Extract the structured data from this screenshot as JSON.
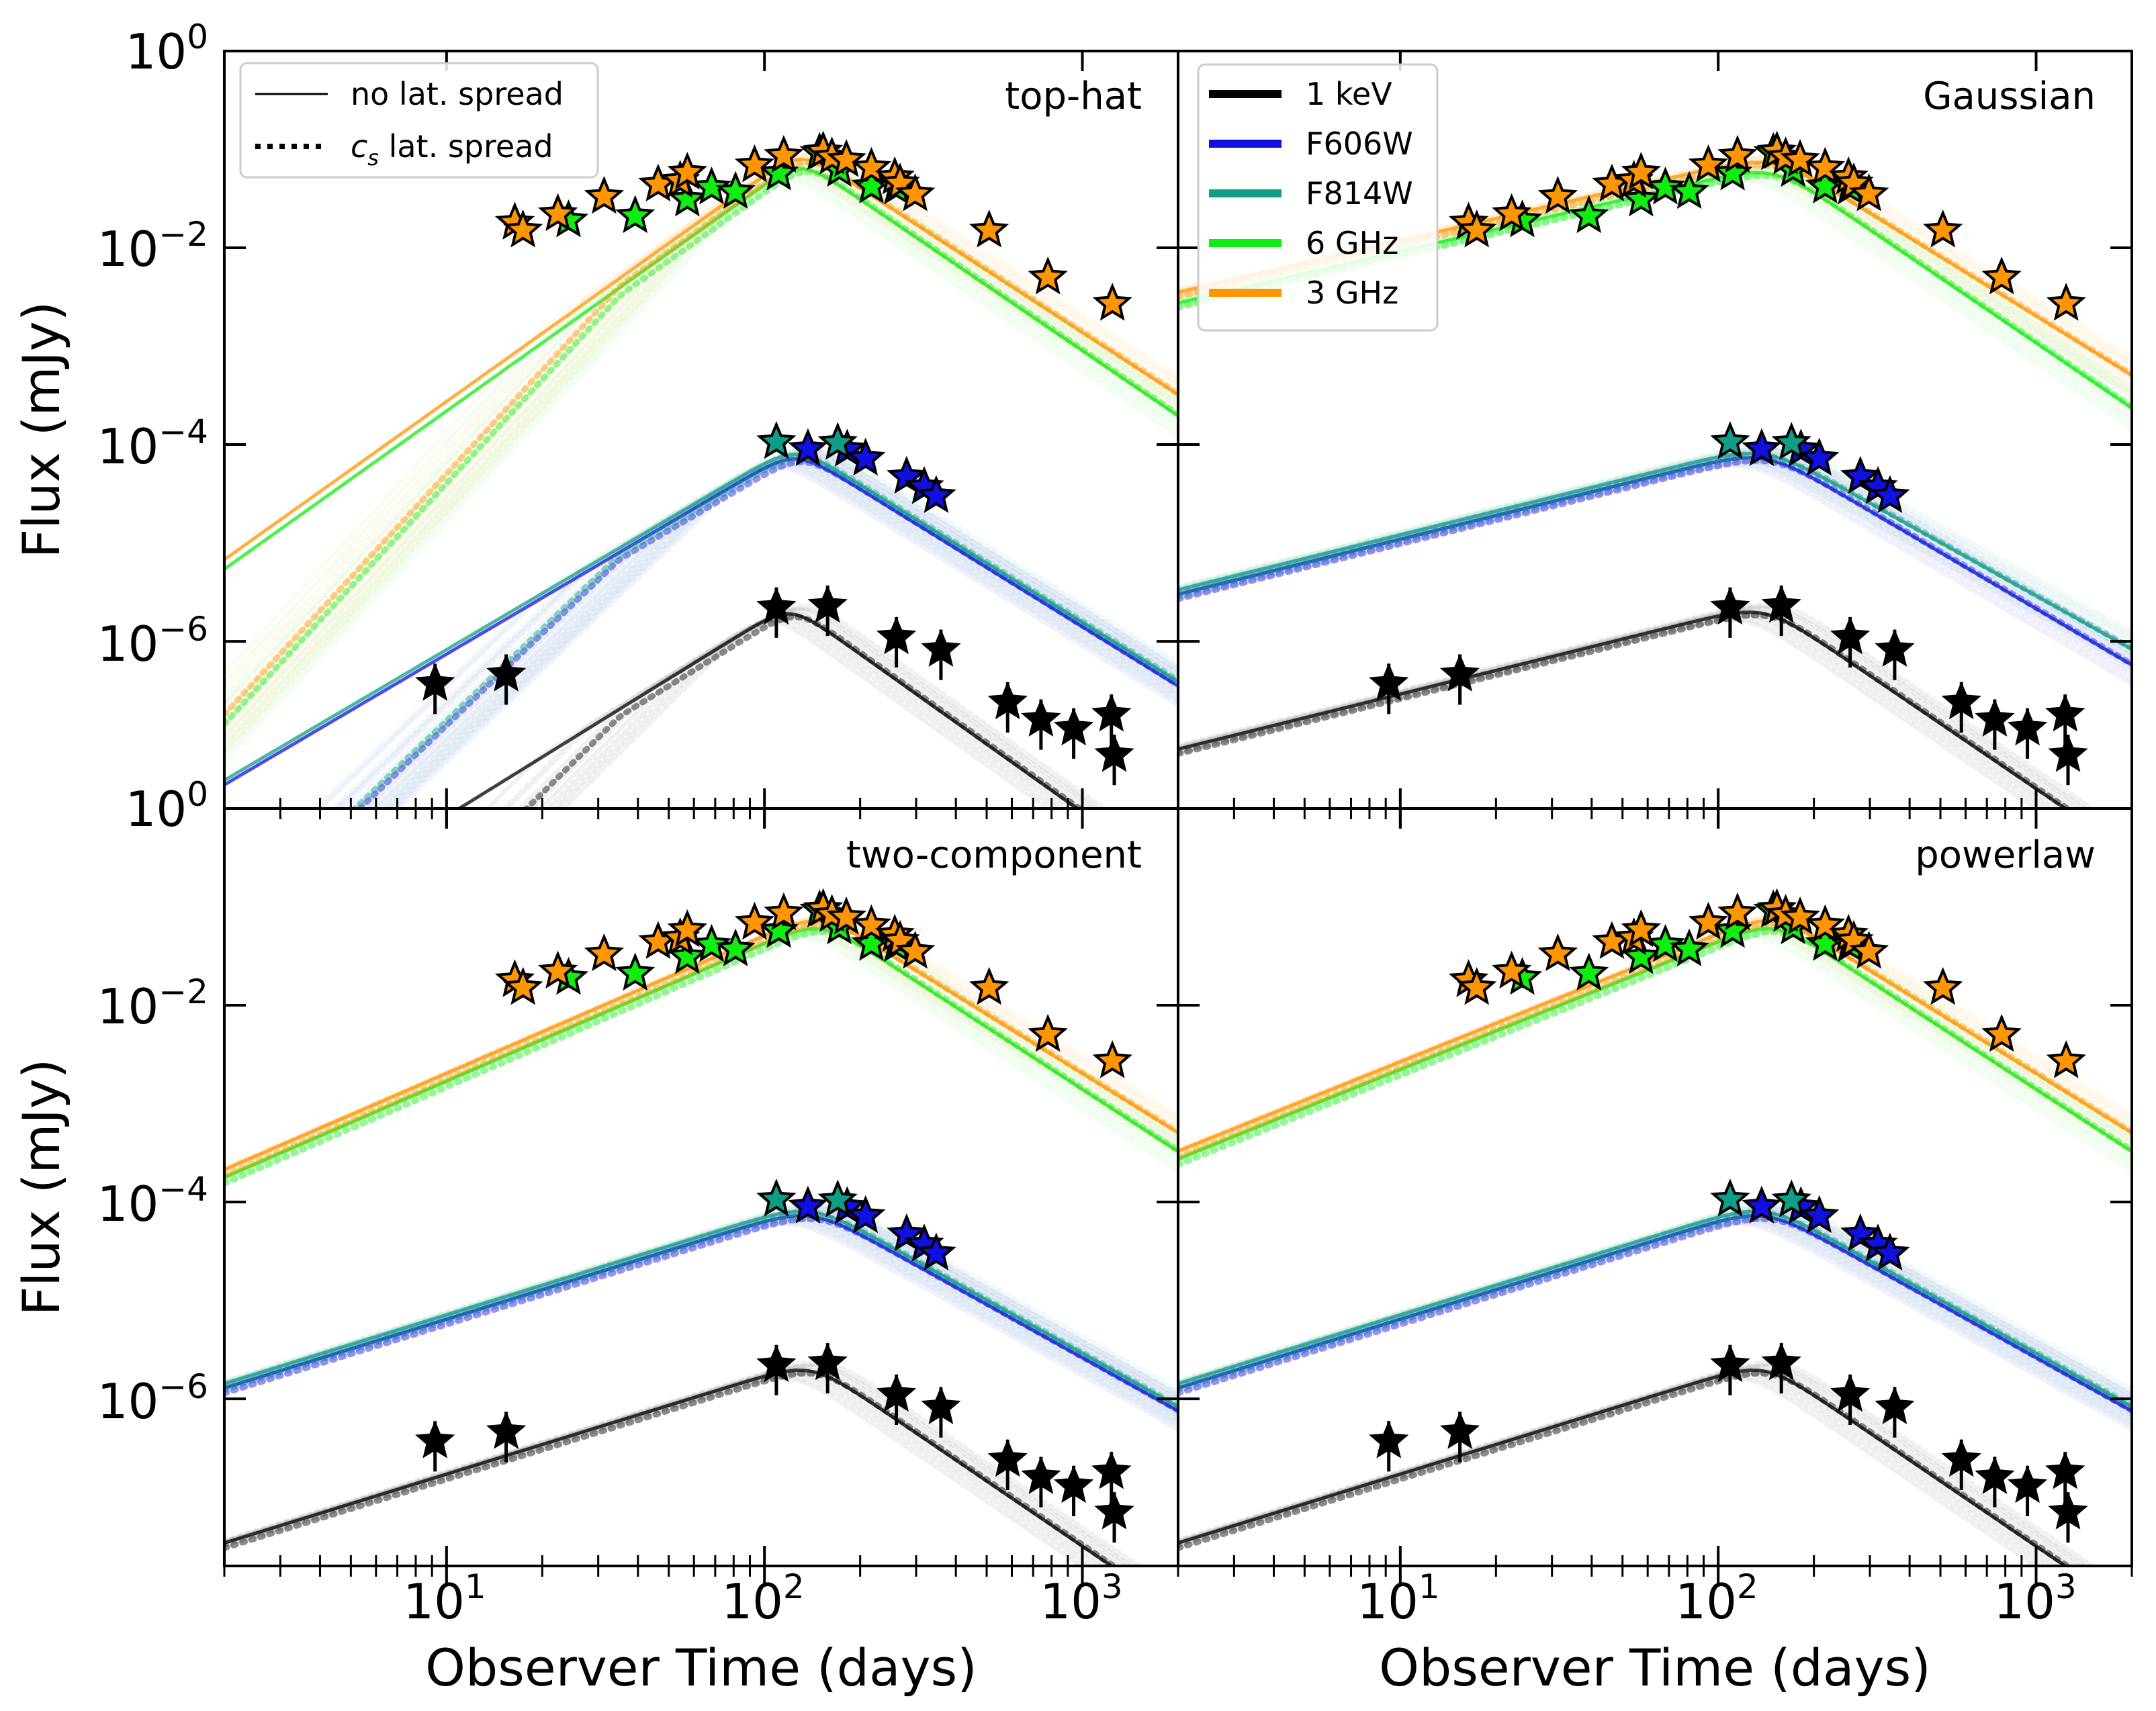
{
  "chart_data": {
    "type": "line",
    "layout": "2x2 grid, shared x axis per column, shared y axis per row",
    "xscale": "log",
    "yscale": "log",
    "xlim": [
      2,
      2000
    ],
    "ylim": [
      2e-08,
      1
    ],
    "xlabel": "Observer Time (days)",
    "ylabel": "Flux (mJy)",
    "x_ticks": [
      10,
      100,
      1000
    ],
    "x_tick_labels": [
      {
        "base": "10",
        "exp": "1"
      },
      {
        "base": "10",
        "exp": "2"
      },
      {
        "base": "10",
        "exp": "3"
      }
    ],
    "y_ticks": [
      1,
      0.01,
      0.0001,
      1e-06
    ],
    "y_tick_labels_top": [
      {
        "base": "10",
        "exp": "0"
      },
      {
        "base": "10",
        "exp": "−2"
      },
      {
        "base": "10",
        "exp": "−4"
      },
      {
        "base": "10",
        "exp": "−6"
      }
    ],
    "y_tick_labels_bottom": [
      {
        "base": "10",
        "exp": "0"
      },
      {
        "base": "10",
        "exp": "−2"
      },
      {
        "base": "10",
        "exp": "−4"
      },
      {
        "base": "10",
        "exp": "−6"
      }
    ],
    "style_legend": {
      "location": "upper-left of top-left panel",
      "entries": [
        {
          "label": "no lat. spread",
          "style": "solid"
        },
        {
          "label_main": "c",
          "label_sub": "s",
          "label_rest": " lat. spread",
          "style": "dotted"
        }
      ]
    },
    "band_legend": {
      "location": "upper-left of top-right panel",
      "entries": [
        {
          "label": "1 keV",
          "color": "#000000"
        },
        {
          "label": "F606W",
          "color": "#1010e0"
        },
        {
          "label": "F814W",
          "color": "#0e9e86"
        },
        {
          "label": "6 GHz",
          "color": "#10ee10"
        },
        {
          "label": "3 GHz",
          "color": "#ff9500"
        }
      ]
    },
    "panels": [
      {
        "title": "top-hat",
        "position": "top-left",
        "models": {
          "3 GHz": {
            "rise_slope": 2.3,
            "decay_slope": -2.1,
            "peak_time": 130,
            "peak_flux": 0.1
          },
          "6 GHz": {
            "rise_slope": 2.3,
            "decay_slope": -2.2,
            "peak_time": 130,
            "peak_flux": 0.08
          },
          "F814W": {
            "rise_slope": 1.9,
            "decay_slope": -2.0,
            "peak_time": 125,
            "peak_flux": 0.0001
          },
          "F606W": {
            "rise_slope": 1.9,
            "decay_slope": -2.0,
            "peak_time": 125,
            "peak_flux": 9e-05
          },
          "1 keV": {
            "rise_slope": 2.0,
            "decay_slope": -2.3,
            "peak_time": 120,
            "peak_flux": 2.4e-06
          }
        }
      },
      {
        "title": "Gaussian",
        "position": "top-right",
        "models": {
          "3 GHz": {
            "rise_slope": 0.75,
            "decay_slope": -2.0,
            "peak_time": 150,
            "peak_flux": 0.09
          },
          "6 GHz": {
            "rise_slope": 0.75,
            "decay_slope": -2.2,
            "peak_time": 150,
            "peak_flux": 0.07
          },
          "F814W": {
            "rise_slope": 0.8,
            "decay_slope": -1.8,
            "peak_time": 140,
            "peak_flux": 0.0001
          },
          "F606W": {
            "rise_slope": 0.8,
            "decay_slope": -1.9,
            "peak_time": 140,
            "peak_flux": 9e-05
          },
          "1 keV": {
            "rise_slope": 0.8,
            "decay_slope": -2.2,
            "peak_time": 140,
            "peak_flux": 2.4e-06
          }
        }
      },
      {
        "title": "two-component",
        "position": "bottom-left",
        "models": {
          "3 GHz": {
            "rise_slope": 1.4,
            "decay_slope": -2.0,
            "peak_time": 150,
            "peak_flux": 0.09
          },
          "6 GHz": {
            "rise_slope": 1.4,
            "decay_slope": -2.1,
            "peak_time": 150,
            "peak_flux": 0.075
          },
          "F814W": {
            "rise_slope": 1.0,
            "decay_slope": -1.8,
            "peak_time": 140,
            "peak_flux": 0.0001
          },
          "F606W": {
            "rise_slope": 1.0,
            "decay_slope": -1.8,
            "peak_time": 140,
            "peak_flux": 9e-05
          },
          "1 keV": {
            "rise_slope": 1.0,
            "decay_slope": -2.2,
            "peak_time": 140,
            "peak_flux": 2.4e-06
          }
        }
      },
      {
        "title": "powerlaw",
        "position": "bottom-right",
        "models": {
          "3 GHz": {
            "rise_slope": 1.3,
            "decay_slope": -2.0,
            "peak_time": 150,
            "peak_flux": 0.09
          },
          "6 GHz": {
            "rise_slope": 1.3,
            "decay_slope": -2.1,
            "peak_time": 150,
            "peak_flux": 0.075
          },
          "F814W": {
            "rise_slope": 1.0,
            "decay_slope": -1.8,
            "peak_time": 140,
            "peak_flux": 0.0001
          },
          "F606W": {
            "rise_slope": 1.0,
            "decay_slope": -1.8,
            "peak_time": 140,
            "peak_flux": 9e-05
          },
          "1 keV": {
            "rise_slope": 1.0,
            "decay_slope": -2.2,
            "peak_time": 140,
            "peak_flux": 2.4e-06
          }
        }
      }
    ],
    "observations": {
      "3 GHz": [
        [
          16.4,
          0.018
        ],
        [
          17.4,
          0.015
        ],
        [
          22.4,
          0.022
        ],
        [
          31.3,
          0.033
        ],
        [
          46.3,
          0.044
        ],
        [
          54.3,
          0.048
        ],
        [
          57.2,
          0.058
        ],
        [
          93.1,
          0.069
        ],
        [
          115,
          0.086
        ],
        [
          153,
          0.095
        ],
        [
          163,
          0.083
        ],
        [
          181,
          0.078
        ],
        [
          217,
          0.065
        ],
        [
          257,
          0.052
        ],
        [
          267,
          0.045
        ],
        [
          298,
          0.035
        ],
        [
          509,
          0.015
        ],
        [
          779,
          0.005
        ],
        [
          1243,
          0.0027
        ]
      ],
      "6 GHz": [
        [
          24.2,
          0.019
        ],
        [
          39.2,
          0.021
        ],
        [
          57.2,
          0.031
        ],
        [
          68.2,
          0.041
        ],
        [
          81.1,
          0.037
        ],
        [
          111,
          0.057
        ],
        [
          149,
          0.092
        ],
        [
          172,
          0.062
        ],
        [
          217,
          0.042
        ],
        [
          260,
          0.041
        ]
      ],
      "F814W": [
        [
          109,
          0.000106
        ],
        [
          170,
          0.000104
        ]
      ],
      "F606W": [
        [
          137,
          9e-05
        ],
        [
          182,
          8.9e-05
        ],
        [
          208,
          7.2e-05
        ],
        [
          280,
          4.7e-05
        ],
        [
          318,
          3.7e-05
        ],
        [
          347,
          3e-05
        ]
      ],
      "1 keV": [
        [
          9.2,
          3.7e-07
        ],
        [
          15.4,
          4.6e-07
        ],
        [
          109,
          2.2e-06
        ],
        [
          158,
          2.3e-06
        ],
        [
          260,
          1.1e-06
        ],
        [
          359,
          8.2e-07
        ],
        [
          582,
          2.4e-07
        ],
        [
          741,
          1.6e-07
        ],
        [
          939,
          1.3e-07
        ],
        [
          1234,
          1.8e-07
        ],
        [
          1260,
          7e-08
        ]
      ]
    }
  }
}
